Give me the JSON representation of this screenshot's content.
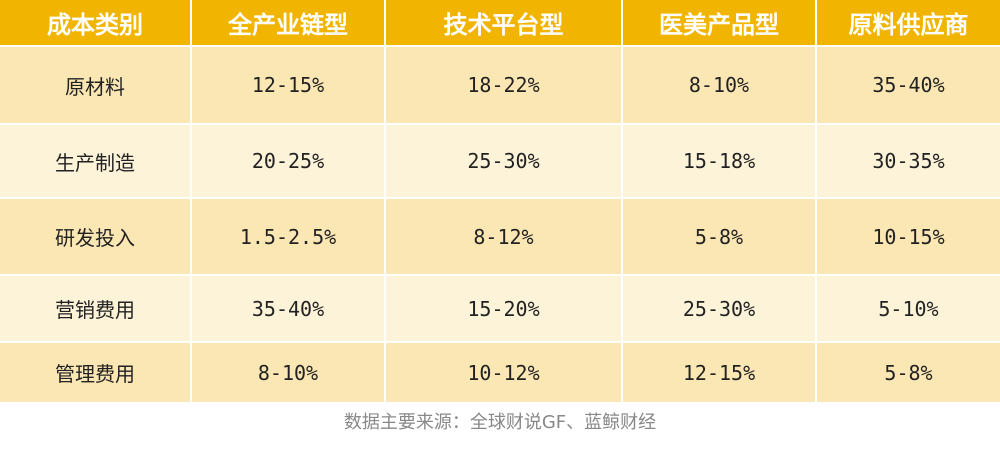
{
  "table": {
    "headers": [
      "成本类别",
      "全产业链型",
      "技术平台型",
      "医美产品型",
      "原料供应商"
    ],
    "rows": [
      [
        "原材料",
        "12-15%",
        "18-22%",
        "8-10%",
        "35-40%"
      ],
      [
        "生产制造",
        "20-25%",
        "25-30%",
        "15-18%",
        "30-35%"
      ],
      [
        "研发投入",
        "1.5-2.5%",
        "8-12%",
        "5-8%",
        "10-15%"
      ],
      [
        "营销费用",
        "35-40%",
        "15-20%",
        "25-30%",
        "5-10%"
      ],
      [
        "管理费用",
        "8-10%",
        "10-12%",
        "12-15%",
        "5-8%"
      ]
    ]
  },
  "source": "数据主要来源：全球财说GF、蓝鲸财经",
  "colors": {
    "header_bg": "#f1b400",
    "row_dark": "#fbe7b3",
    "row_light": "#fdf3d9"
  }
}
